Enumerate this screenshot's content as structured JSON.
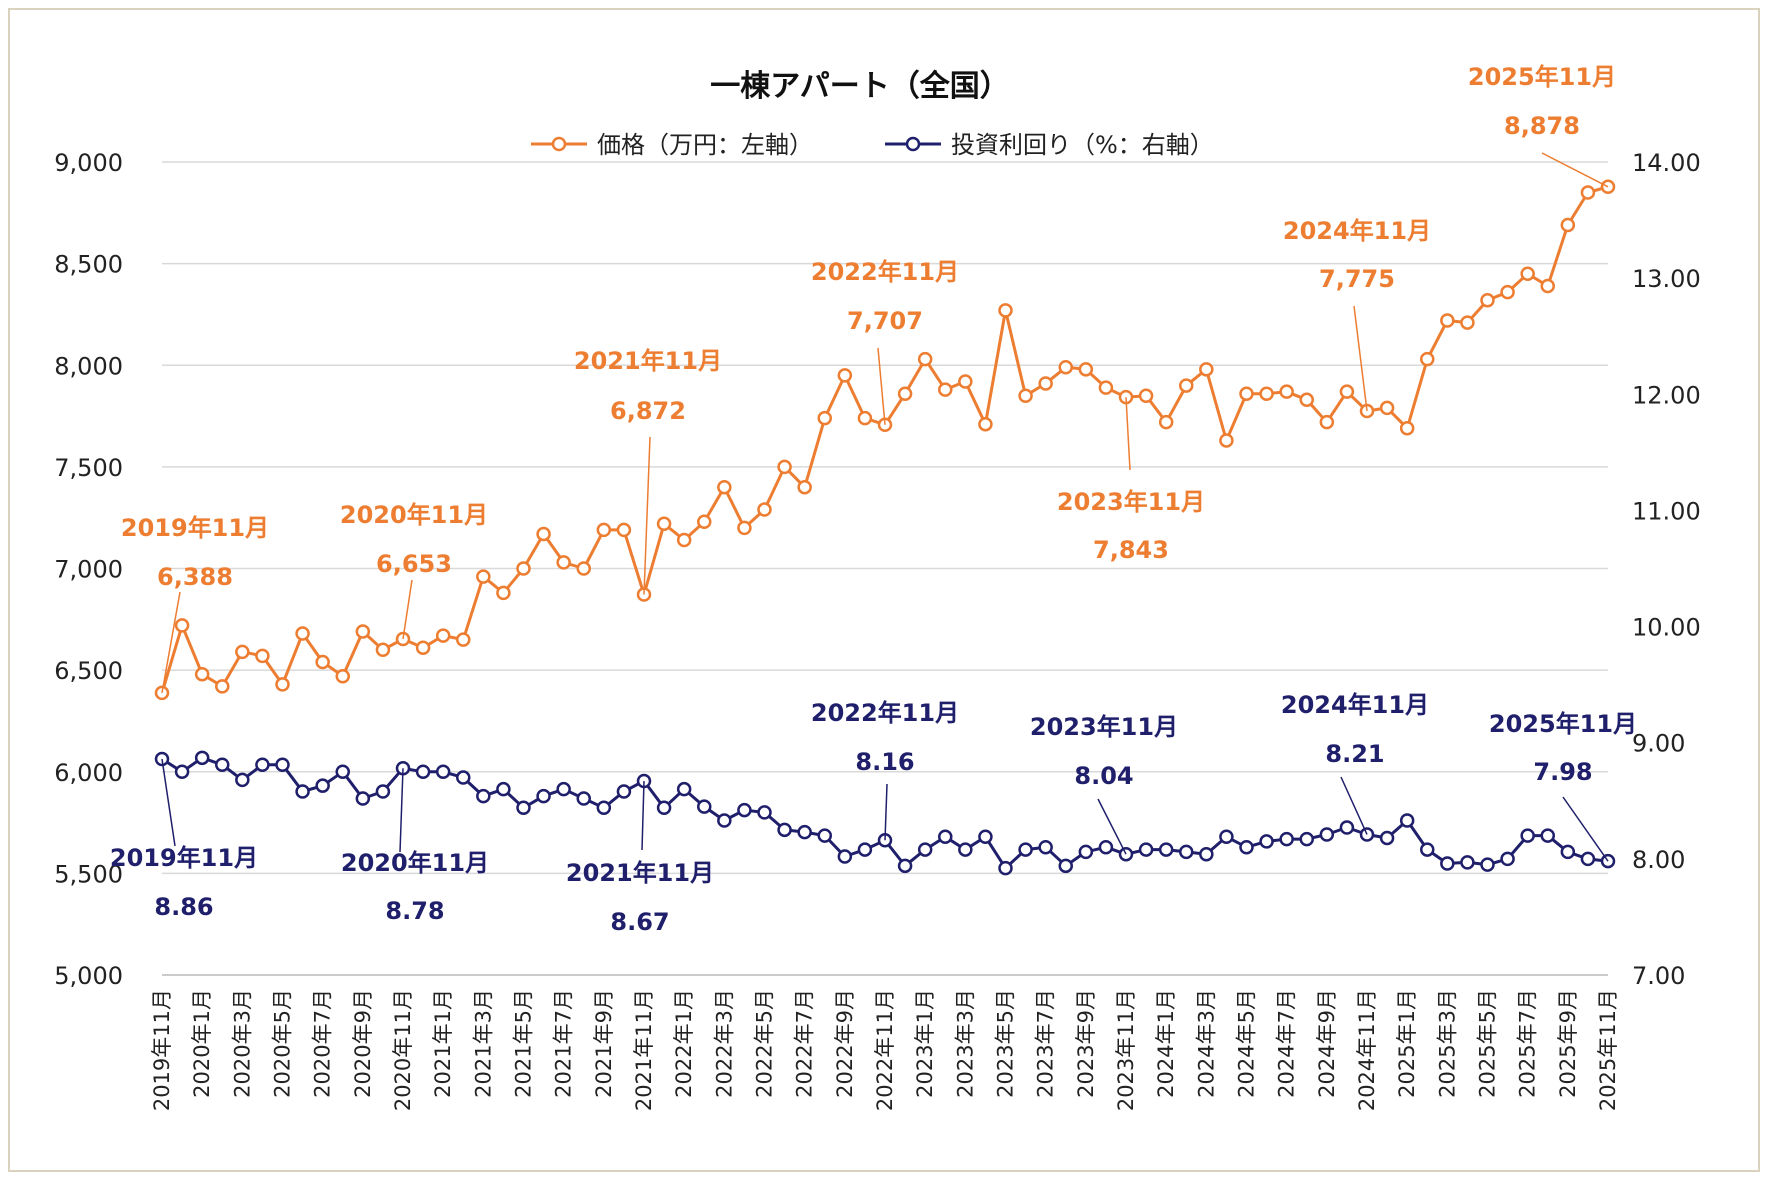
{
  "chart_data": {
    "type": "line",
    "title": "一棟アパート（全国）",
    "legend_position": "top-center",
    "grid": true,
    "categories": [
      "2019年11月",
      "2019年12月",
      "2020年1月",
      "2020年2月",
      "2020年3月",
      "2020年4月",
      "2020年5月",
      "2020年6月",
      "2020年7月",
      "2020年8月",
      "2020年9月",
      "2020年10月",
      "2020年11月",
      "2020年12月",
      "2021年1月",
      "2021年2月",
      "2021年3月",
      "2021年4月",
      "2021年5月",
      "2021年6月",
      "2021年7月",
      "2021年8月",
      "2021年9月",
      "2021年10月",
      "2021年11月",
      "2021年12月",
      "2022年1月",
      "2022年2月",
      "2022年3月",
      "2022年4月",
      "2022年5月",
      "2022年6月",
      "2022年7月",
      "2022年8月",
      "2022年9月",
      "2022年10月",
      "2022年11月",
      "2022年12月",
      "2023年1月",
      "2023年2月",
      "2023年3月",
      "2023年4月",
      "2023年5月",
      "2023年6月",
      "2023年7月",
      "2023年8月",
      "2023年9月",
      "2023年10月",
      "2023年11月",
      "2023年12月",
      "2024年1月",
      "2024年2月",
      "2024年3月",
      "2024年4月",
      "2024年5月",
      "2024年6月",
      "2024年7月",
      "2024年8月",
      "2024年9月",
      "2024年10月",
      "2024年11月",
      "2024年12月",
      "2025年1月",
      "2025年2月",
      "2025年3月",
      "2025年4月",
      "2025年5月",
      "2025年6月",
      "2025年7月",
      "2025年8月",
      "2025年9月",
      "2025年10月",
      "2025年11月"
    ],
    "x_tick_labels": [
      "2019年11月",
      "2020年1月",
      "2020年3月",
      "2020年5月",
      "2020年7月",
      "2020年9月",
      "2020年11月",
      "2021年1月",
      "2021年3月",
      "2021年5月",
      "2021年7月",
      "2021年9月",
      "2021年11月",
      "2022年1月",
      "2022年3月",
      "2022年5月",
      "2022年7月",
      "2022年9月",
      "2022年11月",
      "2023年1月",
      "2023年3月",
      "2023年5月",
      "2023年7月",
      "2023年9月",
      "2023年11月",
      "2024年1月",
      "2024年3月",
      "2024年5月",
      "2024年7月",
      "2024年9月",
      "2024年11月",
      "2025年1月",
      "2025年3月",
      "2025年5月",
      "2025年7月",
      "2025年9月",
      "2025年11月"
    ],
    "y_left": {
      "label": "万円",
      "lim": [
        5000,
        9000
      ],
      "ticks": [
        "5,000",
        "5,500",
        "6,000",
        "6,500",
        "7,000",
        "7,500",
        "8,000",
        "8,500",
        "9,000"
      ]
    },
    "y_right": {
      "label": "%",
      "lim": [
        7.0,
        14.0
      ],
      "ticks": [
        "7.00",
        "8.00",
        "9.00",
        "10.00",
        "11.00",
        "12.00",
        "13.00",
        "14.00"
      ]
    },
    "series": [
      {
        "name": "価格（万円：左軸）",
        "axis": "left",
        "color": "#ed7d31",
        "values": [
          6388,
          6720,
          6480,
          6420,
          6590,
          6570,
          6430,
          6680,
          6540,
          6470,
          6690,
          6600,
          6653,
          6610,
          6670,
          6650,
          6960,
          6880,
          7000,
          7170,
          7030,
          7000,
          7190,
          7190,
          6872,
          7220,
          7140,
          7230,
          7400,
          7200,
          7290,
          7500,
          7400,
          7740,
          7950,
          7740,
          7707,
          7860,
          8030,
          7880,
          7920,
          7710,
          8270,
          7850,
          7910,
          7990,
          7980,
          7890,
          7843,
          7850,
          7720,
          7900,
          7980,
          7630,
          7860,
          7860,
          7870,
          7830,
          7720,
          7870,
          7775,
          7790,
          7690,
          8030,
          8220,
          8210,
          8320,
          8360,
          8450,
          8390,
          8690,
          8850,
          8878
        ]
      },
      {
        "name": "投資利回り（%：右軸）",
        "axis": "right",
        "color": "#1f1f6b",
        "values": [
          8.86,
          8.75,
          8.87,
          8.81,
          8.68,
          8.81,
          8.81,
          8.58,
          8.63,
          8.75,
          8.52,
          8.58,
          8.78,
          8.75,
          8.75,
          8.7,
          8.54,
          8.6,
          8.44,
          8.54,
          8.6,
          8.52,
          8.44,
          8.58,
          8.67,
          8.44,
          8.6,
          8.45,
          8.33,
          8.42,
          8.4,
          8.25,
          8.23,
          8.2,
          8.02,
          8.08,
          8.16,
          7.94,
          8.08,
          8.19,
          8.08,
          8.19,
          7.92,
          8.08,
          8.1,
          7.94,
          8.06,
          8.1,
          8.04,
          8.08,
          8.08,
          8.06,
          8.04,
          8.19,
          8.1,
          8.15,
          8.17,
          8.17,
          8.21,
          8.27,
          8.21,
          8.18,
          8.33,
          8.08,
          7.96,
          7.97,
          7.95,
          8.0,
          8.2,
          8.2,
          8.06,
          8.0,
          7.98
        ]
      }
    ],
    "annotations": [
      {
        "series": 0,
        "index": 0,
        "date": "2019年11月",
        "value": "6,388"
      },
      {
        "series": 0,
        "index": 12,
        "date": "2020年11月",
        "value": "6,653"
      },
      {
        "series": 0,
        "index": 24,
        "date": "2021年11月",
        "value": "6,872"
      },
      {
        "series": 0,
        "index": 36,
        "date": "2022年11月",
        "value": "7,707"
      },
      {
        "series": 0,
        "index": 48,
        "date": "2023年11月",
        "value": "7,843"
      },
      {
        "series": 0,
        "index": 60,
        "date": "2024年11月",
        "value": "7,775"
      },
      {
        "series": 0,
        "index": 72,
        "date": "2025年11月",
        "value": "8,878"
      },
      {
        "series": 1,
        "index": 0,
        "date": "2019年11月",
        "value": "8.86"
      },
      {
        "series": 1,
        "index": 12,
        "date": "2020年11月",
        "value": "8.78"
      },
      {
        "series": 1,
        "index": 24,
        "date": "2021年11月",
        "value": "8.67"
      },
      {
        "series": 1,
        "index": 36,
        "date": "2022年11月",
        "value": "8.16"
      },
      {
        "series": 1,
        "index": 48,
        "date": "2023年11月",
        "value": "8.04"
      },
      {
        "series": 1,
        "index": 60,
        "date": "2024年11月",
        "value": "8.21"
      },
      {
        "series": 1,
        "index": 72,
        "date": "2025年11月",
        "value": "7.98"
      }
    ]
  }
}
